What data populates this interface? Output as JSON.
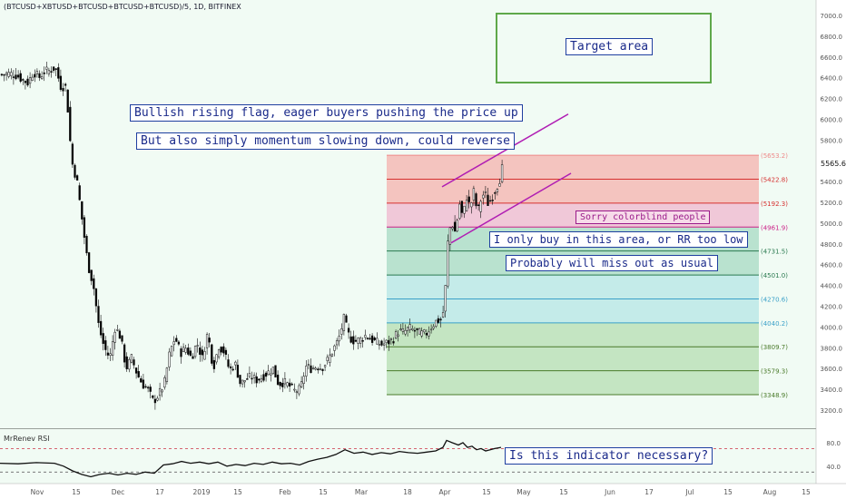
{
  "header": {
    "title": "(BTCUSD+XBTUSD+BTCUSD+BTCUSD+BTCUSD)/5, 1D, BITFINEX"
  },
  "rsi": {
    "title": "MrRenev RSI"
  },
  "annotations": {
    "target": "Target area",
    "flag": "Bullish rising flag, eager buyers pushing the price up",
    "reverse": "But also simply momentum slowing down, could reverse",
    "colorblind": "Sorry colorblind people",
    "buy": "I only buy in this area, or RR too low",
    "miss": "Probably will miss out as usual",
    "indicator": "Is this indicator necessary?"
  },
  "last_price": "5565.6",
  "colors": {
    "background": "#f1fbf4",
    "candle_up": "#ffffff",
    "candle_down": "#000000",
    "channel": "#b01db3",
    "target_box": "#5fa84a",
    "annotation_text": "#1a2a8a"
  },
  "chart_data": [
    {
      "type": "candlestick",
      "ylim": [
        3050,
        7050
      ],
      "y_ticks": [
        "3200.0",
        "3400.0",
        "3600.0",
        "3800.0",
        "4000.0",
        "4200.0",
        "4400.0",
        "4600.0",
        "4800.0",
        "5000.0",
        "5200.0",
        "5400.0",
        "5600.0",
        "5800.0",
        "6000.0",
        "6200.0",
        "6400.0",
        "6600.0",
        "6800.0",
        "7000.0"
      ],
      "x_ticks": [
        "Nov",
        "15",
        "Dec",
        "17",
        "2019",
        "15",
        "Feb",
        "15",
        "Mar",
        "18",
        "Apr",
        "15",
        "May",
        "15",
        "Jun",
        "17",
        "Jul",
        "15",
        "Aug",
        "15"
      ],
      "close_path": [
        [
          0,
          6430
        ],
        [
          10,
          6440
        ],
        [
          18,
          6420
        ],
        [
          24,
          6380
        ],
        [
          30,
          6350
        ],
        [
          36,
          6460
        ],
        [
          42,
          6400
        ],
        [
          48,
          6460
        ],
        [
          54,
          6470
        ],
        [
          60,
          6500
        ],
        [
          66,
          6320
        ],
        [
          72,
          6310
        ],
        [
          78,
          5600
        ],
        [
          84,
          5400
        ],
        [
          90,
          5000
        ],
        [
          96,
          4600
        ],
        [
          102,
          4400
        ],
        [
          108,
          4000
        ],
        [
          114,
          3800
        ],
        [
          120,
          3700
        ],
        [
          126,
          4000
        ],
        [
          132,
          3900
        ],
        [
          138,
          3600
        ],
        [
          144,
          3700
        ],
        [
          150,
          3550
        ],
        [
          156,
          3450
        ],
        [
          162,
          3400
        ],
        [
          168,
          3280
        ],
        [
          174,
          3350
        ],
        [
          180,
          3450
        ],
        [
          186,
          3750
        ],
        [
          192,
          3900
        ],
        [
          198,
          3750
        ],
        [
          204,
          3800
        ],
        [
          210,
          3700
        ],
        [
          216,
          3850
        ],
        [
          222,
          3700
        ],
        [
          228,
          3950
        ],
        [
          234,
          3600
        ],
        [
          240,
          3820
        ],
        [
          246,
          3760
        ],
        [
          252,
          3580
        ],
        [
          258,
          3650
        ],
        [
          264,
          3450
        ],
        [
          270,
          3500
        ],
        [
          276,
          3520
        ],
        [
          282,
          3490
        ],
        [
          288,
          3520
        ],
        [
          294,
          3560
        ],
        [
          300,
          3600
        ],
        [
          306,
          3450
        ],
        [
          312,
          3470
        ],
        [
          318,
          3430
        ],
        [
          324,
          3380
        ],
        [
          330,
          3400
        ],
        [
          336,
          3620
        ],
        [
          342,
          3600
        ],
        [
          348,
          3620
        ],
        [
          354,
          3610
        ],
        [
          360,
          3680
        ],
        [
          366,
          3780
        ],
        [
          372,
          3880
        ],
        [
          378,
          4080
        ],
        [
          384,
          3900
        ],
        [
          390,
          3860
        ],
        [
          396,
          3880
        ],
        [
          402,
          3920
        ],
        [
          408,
          3880
        ],
        [
          414,
          3850
        ],
        [
          420,
          3830
        ],
        [
          426,
          3850
        ],
        [
          432,
          3880
        ],
        [
          438,
          3960
        ],
        [
          444,
          3950
        ],
        [
          450,
          3990
        ],
        [
          456,
          3960
        ],
        [
          462,
          3940
        ],
        [
          468,
          3930
        ],
        [
          474,
          4000
        ],
        [
          480,
          4060
        ],
        [
          486,
          4070
        ],
        [
          489,
          4250
        ],
        [
          493,
          4910
        ],
        [
          497,
          5000
        ],
        [
          501,
          4900
        ],
        [
          505,
          5200
        ],
        [
          509,
          5050
        ],
        [
          513,
          5260
        ],
        [
          517,
          5150
        ],
        [
          521,
          5300
        ],
        [
          525,
          5100
        ],
        [
          529,
          5230
        ],
        [
          533,
          5300
        ],
        [
          537,
          5180
        ],
        [
          541,
          5250
        ],
        [
          545,
          5330
        ],
        [
          549,
          5400
        ],
        [
          553,
          5560
        ]
      ],
      "fib_levels": [
        {
          "label": "(5653.2)",
          "value": 5653.2,
          "color": "#ee8888"
        },
        {
          "label": "(5422.8)",
          "value": 5422.8,
          "color": "#d63030"
        },
        {
          "label": "(5192.3)",
          "value": 5192.3,
          "color": "#d63030"
        },
        {
          "label": "(4961.9)",
          "value": 4961.9,
          "color": "#cc2288"
        },
        {
          "label": "(4731.5)",
          "value": 4731.5,
          "color": "#2b7a50"
        },
        {
          "label": "(4501.0)",
          "value": 4501.0,
          "color": "#2b7a50"
        },
        {
          "label": "(4270.6)",
          "value": 4270.6,
          "color": "#3aa0c8"
        },
        {
          "label": "(4040.2)",
          "value": 4040.2,
          "color": "#3aa0c8"
        },
        {
          "label": "(3809.7)",
          "value": 3809.7,
          "color": "#4a7a2a"
        },
        {
          "label": "(3579.3)",
          "value": 3579.3,
          "color": "#4a7a2a"
        },
        {
          "label": "(3348.9)",
          "value": 3348.9,
          "color": "#4a7a2a"
        }
      ],
      "fib_zones": [
        {
          "from": 5653.2,
          "to": 5422.8,
          "color": "#f4c4bf"
        },
        {
          "from": 5422.8,
          "to": 5192.3,
          "color": "#f4c4bf"
        },
        {
          "from": 5192.3,
          "to": 4961.9,
          "color": "#f0c8d8"
        },
        {
          "from": 4961.9,
          "to": 4731.5,
          "color": "#b9e2cf"
        },
        {
          "from": 4731.5,
          "to": 4501.0,
          "color": "#b9e2cf"
        },
        {
          "from": 4501.0,
          "to": 4270.6,
          "color": "#c4ebe9"
        },
        {
          "from": 4270.6,
          "to": 4040.2,
          "color": "#c4ebe9"
        },
        {
          "from": 4040.2,
          "to": 3809.7,
          "color": "#c4e5c2"
        },
        {
          "from": 3809.7,
          "to": 3579.3,
          "color": "#c4e5c2"
        },
        {
          "from": 3579.3,
          "to": 3348.9,
          "color": "#c4e5c2"
        }
      ],
      "channel": {
        "upper": [
          [
            487,
            5350
          ],
          [
            626,
            6050
          ]
        ],
        "lower": [
          [
            497,
            4810
          ],
          [
            629,
            5480
          ]
        ]
      }
    },
    {
      "type": "line",
      "name": "MrRenev RSI",
      "ylim": [
        15,
        100
      ],
      "y_ticks": [
        "80.0",
        "40.0"
      ],
      "dashed_levels": [
        {
          "value": 70,
          "color": "#cc3344"
        },
        {
          "value": 30,
          "color": "#666666"
        }
      ],
      "points": [
        [
          0,
          45
        ],
        [
          20,
          44
        ],
        [
          40,
          46
        ],
        [
          60,
          45
        ],
        [
          70,
          40
        ],
        [
          80,
          32
        ],
        [
          90,
          26
        ],
        [
          100,
          22
        ],
        [
          110,
          26
        ],
        [
          120,
          28
        ],
        [
          130,
          25
        ],
        [
          140,
          28
        ],
        [
          150,
          26
        ],
        [
          160,
          30
        ],
        [
          170,
          28
        ],
        [
          180,
          42
        ],
        [
          190,
          44
        ],
        [
          200,
          48
        ],
        [
          210,
          45
        ],
        [
          220,
          47
        ],
        [
          230,
          44
        ],
        [
          240,
          47
        ],
        [
          250,
          40
        ],
        [
          260,
          43
        ],
        [
          270,
          41
        ],
        [
          280,
          45
        ],
        [
          290,
          43
        ],
        [
          300,
          47
        ],
        [
          310,
          44
        ],
        [
          320,
          45
        ],
        [
          330,
          42
        ],
        [
          340,
          48
        ],
        [
          350,
          52
        ],
        [
          360,
          55
        ],
        [
          370,
          60
        ],
        [
          380,
          68
        ],
        [
          390,
          62
        ],
        [
          400,
          64
        ],
        [
          410,
          60
        ],
        [
          420,
          63
        ],
        [
          430,
          61
        ],
        [
          440,
          65
        ],
        [
          450,
          63
        ],
        [
          460,
          62
        ],
        [
          470,
          64
        ],
        [
          480,
          66
        ],
        [
          488,
          72
        ],
        [
          492,
          84
        ],
        [
          498,
          80
        ],
        [
          505,
          76
        ],
        [
          510,
          80
        ],
        [
          515,
          72
        ],
        [
          520,
          74
        ],
        [
          525,
          68
        ],
        [
          530,
          70
        ],
        [
          535,
          66
        ],
        [
          540,
          68
        ],
        [
          545,
          70
        ],
        [
          552,
          72
        ]
      ]
    }
  ]
}
